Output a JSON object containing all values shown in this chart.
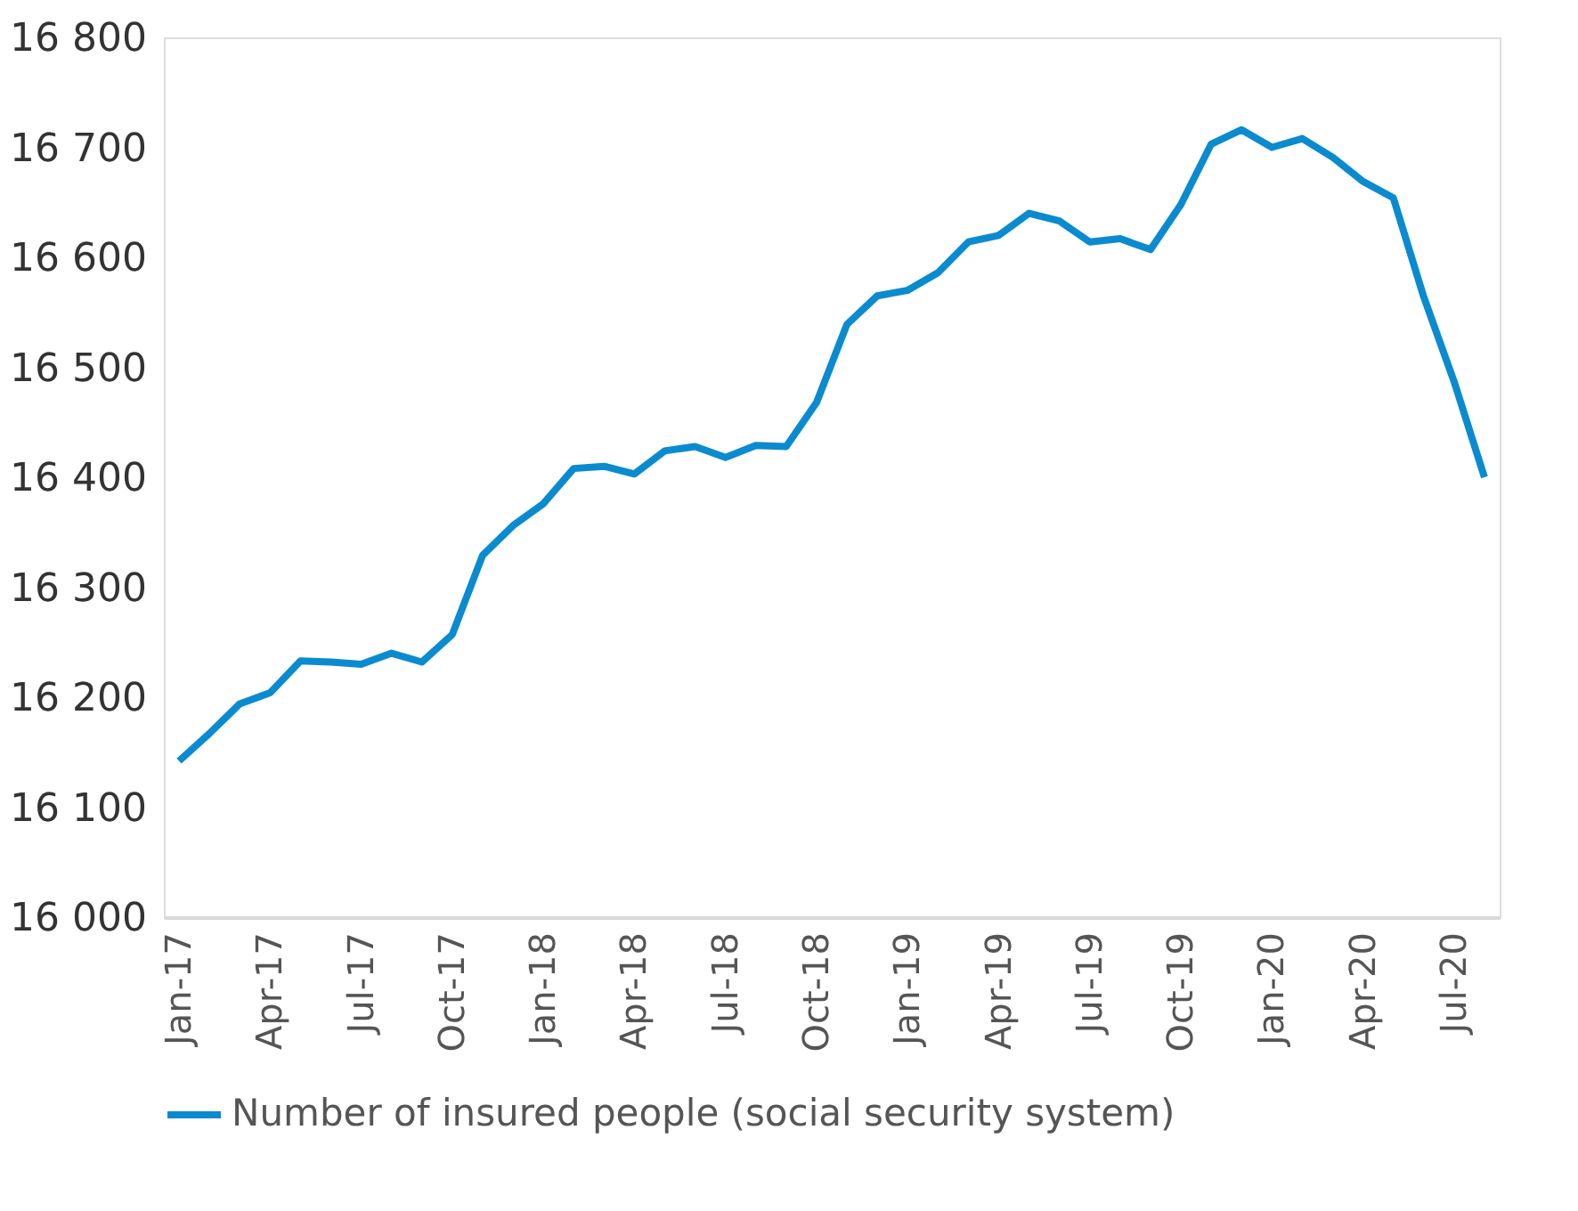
{
  "chart_data": {
    "type": "line",
    "categories": [
      "Jan-17",
      null,
      null,
      "Apr-17",
      null,
      null,
      "Jul-17",
      null,
      null,
      "Oct-17",
      null,
      null,
      "Jan-18",
      null,
      null,
      "Apr-18",
      null,
      null,
      "Jul-18",
      null,
      null,
      "Oct-18",
      null,
      null,
      "Jan-19",
      null,
      null,
      "Apr-19",
      null,
      null,
      "Jul-19",
      null,
      null,
      "Oct-19",
      null,
      null,
      "Jan-20",
      null,
      null,
      "Apr-20",
      null,
      null,
      "Jul-20",
      null
    ],
    "series": [
      {
        "name": "Number of insured people (social security system)",
        "color": "#0a8bd0",
        "values": [
          16142,
          16167,
          16194,
          16204,
          16233,
          16232,
          16230,
          16240,
          16232,
          16257,
          16329,
          16356,
          16376,
          16408,
          16410,
          16403,
          16424,
          16428,
          16418,
          16429,
          16428,
          16468,
          16539,
          16565,
          16570,
          16586,
          16614,
          16620,
          16640,
          16633,
          16614,
          16617,
          16607,
          16648,
          16703,
          16716,
          16700,
          16708,
          16691,
          16669,
          16654,
          16564,
          16487,
          16400
        ]
      }
    ],
    "ylim": [
      16000,
      16800
    ],
    "yticks": [
      {
        "value": 16000,
        "label": "16 000"
      },
      {
        "value": 16100,
        "label": "16 100"
      },
      {
        "value": 16200,
        "label": "16 200"
      },
      {
        "value": 16300,
        "label": "16 300"
      },
      {
        "value": 16400,
        "label": "16 400"
      },
      {
        "value": 16500,
        "label": "16 500"
      },
      {
        "value": 16600,
        "label": "16 600"
      },
      {
        "value": 16700,
        "label": "16 700"
      },
      {
        "value": 16800,
        "label": "16 800"
      }
    ],
    "grid": false,
    "legend": "bottom",
    "marker": "none",
    "line_style": "solid"
  }
}
